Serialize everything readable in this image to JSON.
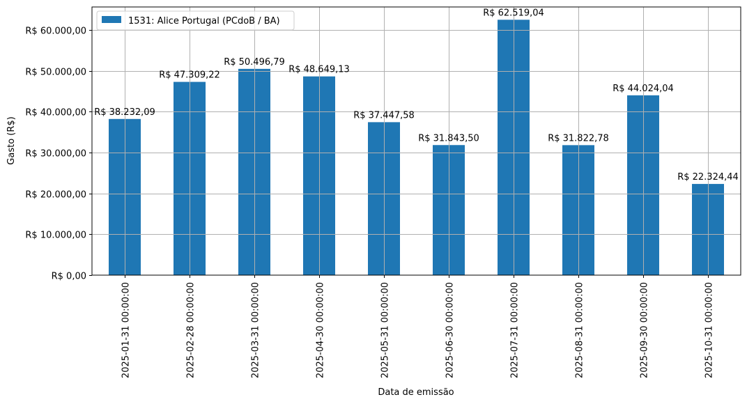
{
  "chart_data": {
    "type": "bar",
    "title": "",
    "xlabel": "Data de emissão",
    "ylabel": "Gasto (R$)",
    "ylim": [
      0,
      65650
    ],
    "grid": true,
    "legend_position": "upper left",
    "categories": [
      "2025-01-31 00:00:00",
      "2025-02-28 00:00:00",
      "2025-03-31 00:00:00",
      "2025-04-30 00:00:00",
      "2025-05-31 00:00:00",
      "2025-06-30 00:00:00",
      "2025-07-31 00:00:00",
      "2025-08-31 00:00:00",
      "2025-09-30 00:00:00",
      "2025-10-31 00:00:00"
    ],
    "series": [
      {
        "name": "1531: Alice Portugal (PCdoB / BA)",
        "color": "#1f77b4",
        "values": [
          38232.09,
          47309.22,
          50496.79,
          48649.13,
          37447.58,
          31843.5,
          62519.04,
          31822.78,
          44024.04,
          22324.44
        ],
        "labels": [
          "R$ 38.232,09",
          "R$ 47.309,22",
          "R$ 50.496,79",
          "R$ 48.649,13",
          "R$ 37.447,58",
          "R$ 31.843,50",
          "R$ 62.519,04",
          "R$ 31.822,78",
          "R$ 44.024,04",
          "R$ 22.324,44"
        ]
      }
    ],
    "yticks": [
      0,
      10000,
      20000,
      30000,
      40000,
      50000,
      60000
    ],
    "ytick_labels": [
      "R$ 0,00",
      "R$ 10.000,00",
      "R$ 20.000,00",
      "R$ 30.000,00",
      "R$ 40.000,00",
      "R$ 50.000,00",
      "R$ 60.000,00"
    ]
  },
  "legend": {
    "label": "1531: Alice Portugal (PCdoB / BA)"
  },
  "colors": {
    "bar": "#1f77b4",
    "grid": "#b0b0b0",
    "axis": "#000000"
  }
}
